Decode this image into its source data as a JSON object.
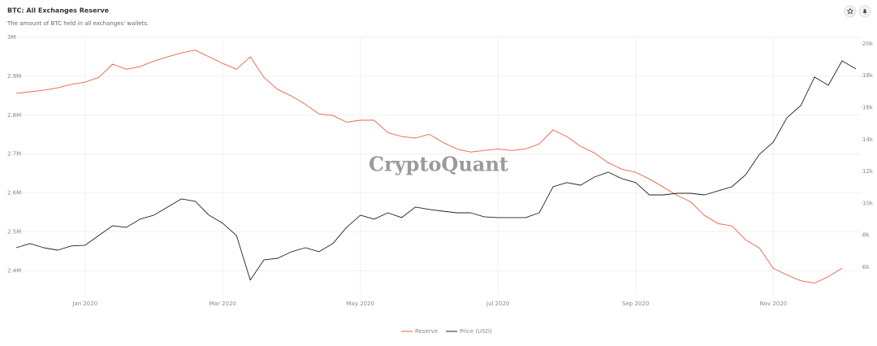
{
  "chart_data": {
    "type": "line",
    "title": "BTC: All Exchanges Reserve",
    "subtitle": "The amount of BTC held in all exchanges' wallets.",
    "watermark": "CryptoQuant",
    "categories": [
      null,
      null,
      null,
      null,
      null,
      "Jan 2020",
      null,
      null,
      null,
      null,
      null,
      null,
      null,
      null,
      null,
      "Mar 2020",
      null,
      null,
      null,
      null,
      null,
      null,
      null,
      null,
      null,
      "May 2020",
      null,
      null,
      null,
      null,
      null,
      null,
      null,
      null,
      null,
      "Jul 2020",
      null,
      null,
      null,
      null,
      null,
      null,
      null,
      null,
      null,
      "Sep 2020",
      null,
      null,
      null,
      null,
      null,
      null,
      null,
      null,
      null,
      "Nov 2020",
      null,
      null,
      null,
      null,
      null,
      null
    ],
    "series": [
      {
        "name": "Reserve",
        "color": "#e8604c",
        "axis": "y",
        "values": [
          2856000,
          2860000,
          2864000,
          2870000,
          2879000,
          2885000,
          2897000,
          2931000,
          2918000,
          2925000,
          2939000,
          2950000,
          2960000,
          2967000,
          2950000,
          2933000,
          2918000,
          2950000,
          2897000,
          2866000,
          2849000,
          2828000,
          2803000,
          2799000,
          2782000,
          2787000,
          2787000,
          2755000,
          2745000,
          2741000,
          2751000,
          2730000,
          2713000,
          2705000,
          2709000,
          2713000,
          2709000,
          2713000,
          2726000,
          2762000,
          2745000,
          2720000,
          2703000,
          2678000,
          2661000,
          2653000,
          2636000,
          2615000,
          2594000,
          2577000,
          2542000,
          2521000,
          2515000,
          2479000,
          2458000,
          2406000,
          2389000,
          2374000,
          2368000,
          2385000,
          2406000,
          null
        ]
      },
      {
        "name": "Price (USD)",
        "color": "#222222",
        "axis": "y2",
        "values": [
          7220,
          7480,
          7220,
          7070,
          7330,
          7380,
          7990,
          8600,
          8500,
          9010,
          9260,
          9770,
          10280,
          10130,
          9260,
          8750,
          7990,
          5190,
          6460,
          6560,
          6970,
          7220,
          6970,
          7480,
          8500,
          9260,
          9010,
          9410,
          9110,
          9770,
          9620,
          9510,
          9410,
          9410,
          9160,
          9110,
          9110,
          9110,
          9410,
          11040,
          11300,
          11140,
          11650,
          11960,
          11550,
          11300,
          10530,
          10530,
          10630,
          10630,
          10530,
          10790,
          11040,
          11800,
          13080,
          13840,
          15370,
          16130,
          17910,
          17400,
          18930,
          18420
        ]
      }
    ],
    "ylim": [
      2340000,
      3000000
    ],
    "yticks": [
      {
        "value": 2400000,
        "label": "2.4M"
      },
      {
        "value": 2500000,
        "label": "2.5M"
      },
      {
        "value": 2600000,
        "label": "2.6M"
      },
      {
        "value": 2700000,
        "label": "2.7M"
      },
      {
        "value": 2800000,
        "label": "2.8M"
      },
      {
        "value": 2900000,
        "label": "2.9M"
      },
      {
        "value": 3000000,
        "label": "3M"
      }
    ],
    "y2lim": [
      4320,
      20400
    ],
    "y2ticks": [
      {
        "value": 6000,
        "label": "6k"
      },
      {
        "value": 8000,
        "label": "8k"
      },
      {
        "value": 10000,
        "label": "10k"
      },
      {
        "value": 12000,
        "label": "12k"
      },
      {
        "value": 14000,
        "label": "14k"
      },
      {
        "value": 16000,
        "label": "16k"
      },
      {
        "value": 18000,
        "label": "18k"
      },
      {
        "value": 20000,
        "label": "20k"
      }
    ],
    "grid": true
  }
}
